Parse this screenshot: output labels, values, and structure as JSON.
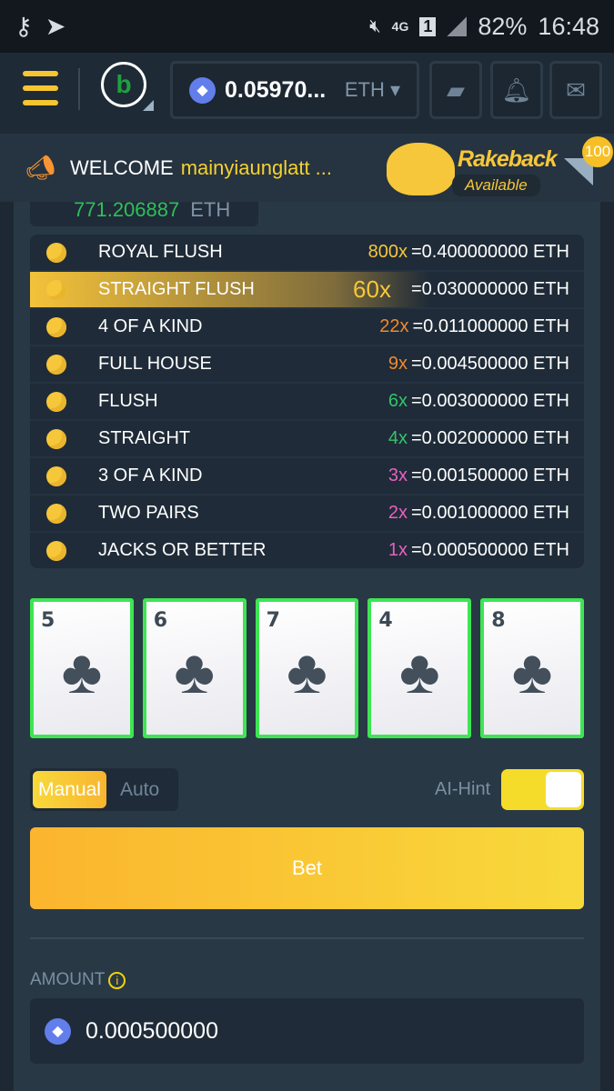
{
  "status_bar": {
    "battery": "82%",
    "time": "16:48",
    "network": "4G",
    "sim": "1"
  },
  "header": {
    "balance": "0.05970...",
    "currency": "ETH",
    "logo": "b"
  },
  "welcome": {
    "label": "WELCOME",
    "username": "mainyiaunglatt ...",
    "rakeback_title": "Rakeback",
    "rakeback_sub": "Available",
    "message_count": "100"
  },
  "previous": {
    "value": "771.206887",
    "currency": "ETH"
  },
  "paytable": [
    {
      "hand": "ROYAL FLUSH",
      "mult": "800x",
      "payout": "=0.400000000 ETH",
      "color": "#f6c73a"
    },
    {
      "hand": "STRAIGHT FLUSH",
      "mult": "60x",
      "payout": "=0.030000000 ETH",
      "color": "#f6c73a",
      "highlighted": true
    },
    {
      "hand": "4 OF A KIND",
      "mult": "22x",
      "payout": "=0.011000000 ETH",
      "color": "#f08a2a"
    },
    {
      "hand": "FULL HOUSE",
      "mult": "9x",
      "payout": "=0.004500000 ETH",
      "color": "#f08a2a"
    },
    {
      "hand": "FLUSH",
      "mult": "6x",
      "payout": "=0.003000000 ETH",
      "color": "#33c36a"
    },
    {
      "hand": "STRAIGHT",
      "mult": "4x",
      "payout": "=0.002000000 ETH",
      "color": "#33c36a"
    },
    {
      "hand": "3 OF A KIND",
      "mult": "3x",
      "payout": "=0.001500000 ETH",
      "color": "#ea5fc3"
    },
    {
      "hand": "TWO PAIRS",
      "mult": "2x",
      "payout": "=0.001000000 ETH",
      "color": "#ea5fc3"
    },
    {
      "hand": "JACKS OR BETTER",
      "mult": "1x",
      "payout": "=0.000500000 ETH",
      "color": "#ea5fc3"
    }
  ],
  "cards": [
    {
      "rank": "5",
      "suit": "♣"
    },
    {
      "rank": "6",
      "suit": "♣"
    },
    {
      "rank": "7",
      "suit": "♣"
    },
    {
      "rank": "4",
      "suit": "♣"
    },
    {
      "rank": "8",
      "suit": "♣"
    }
  ],
  "controls": {
    "manual": "Manual",
    "auto": "Auto",
    "ai_hint": "AI-Hint",
    "ai_hint_on": true,
    "bet": "Bet"
  },
  "amount": {
    "label": "AMOUNT",
    "value": "0.000500000"
  }
}
